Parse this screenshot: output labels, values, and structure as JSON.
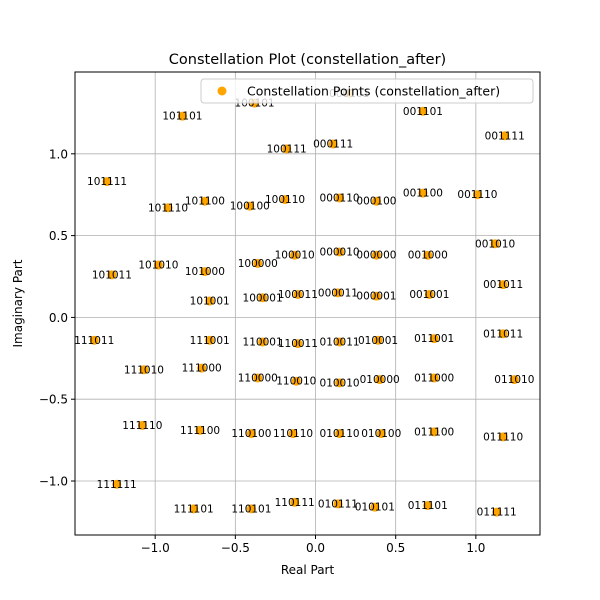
{
  "chart_data": {
    "type": "scatter",
    "title": "Constellation Plot (constellation_after)",
    "xlabel": "Real Part",
    "ylabel": "Imaginary Part",
    "xlim": [
      -1.5,
      1.4
    ],
    "ylim": [
      -1.33,
      1.5
    ],
    "xticks": [
      -1.0,
      -0.5,
      0.0,
      0.5,
      1.0
    ],
    "yticks": [
      -1.0,
      -0.5,
      0.0,
      0.5,
      1.0
    ],
    "xtick_labels": [
      "−1.0",
      "−0.5",
      "0.0",
      "0.5",
      "1.0"
    ],
    "ytick_labels": [
      "−1.0",
      "−0.5",
      "0.0",
      "0.5",
      "1.0"
    ],
    "grid": true,
    "legend_position": "top-right",
    "series": [
      {
        "name": "Constellation Points (constellation_after)",
        "color": "#FFA500",
        "points": [
          {
            "x": -0.38,
            "y": 1.31,
            "label": "100101"
          },
          {
            "x": 0.21,
            "y": 1.37,
            "label": "000101"
          },
          {
            "x": -0.83,
            "y": 1.23,
            "label": "101101"
          },
          {
            "x": 0.67,
            "y": 1.26,
            "label": "001101"
          },
          {
            "x": 0.11,
            "y": 1.06,
            "label": "000111"
          },
          {
            "x": -0.18,
            "y": 1.03,
            "label": "100111"
          },
          {
            "x": 1.18,
            "y": 1.11,
            "label": "001111"
          },
          {
            "x": -1.3,
            "y": 0.83,
            "label": "101111"
          },
          {
            "x": 0.67,
            "y": 0.76,
            "label": "001100"
          },
          {
            "x": 1.01,
            "y": 0.75,
            "label": "001110"
          },
          {
            "x": 0.15,
            "y": 0.73,
            "label": "000110"
          },
          {
            "x": -0.19,
            "y": 0.72,
            "label": "100110"
          },
          {
            "x": -0.69,
            "y": 0.71,
            "label": "101100"
          },
          {
            "x": 0.38,
            "y": 0.71,
            "label": "000100"
          },
          {
            "x": -0.92,
            "y": 0.67,
            "label": "101110"
          },
          {
            "x": -0.41,
            "y": 0.68,
            "label": "100100"
          },
          {
            "x": 1.12,
            "y": 0.45,
            "label": "001010"
          },
          {
            "x": 0.15,
            "y": 0.4,
            "label": "000010"
          },
          {
            "x": -0.13,
            "y": 0.38,
            "label": "100010"
          },
          {
            "x": 0.38,
            "y": 0.38,
            "label": "000000"
          },
          {
            "x": 0.7,
            "y": 0.38,
            "label": "001000"
          },
          {
            "x": -0.36,
            "y": 0.33,
            "label": "100000"
          },
          {
            "x": -0.98,
            "y": 0.32,
            "label": "101010"
          },
          {
            "x": -0.69,
            "y": 0.28,
            "label": "101000"
          },
          {
            "x": -1.27,
            "y": 0.26,
            "label": "101011"
          },
          {
            "x": 1.17,
            "y": 0.2,
            "label": "001011"
          },
          {
            "x": 0.14,
            "y": 0.15,
            "label": "000011"
          },
          {
            "x": -0.11,
            "y": 0.14,
            "label": "100011"
          },
          {
            "x": 0.38,
            "y": 0.13,
            "label": "000001"
          },
          {
            "x": 0.71,
            "y": 0.14,
            "label": "001001"
          },
          {
            "x": -0.33,
            "y": 0.12,
            "label": "100001"
          },
          {
            "x": -0.66,
            "y": 0.1,
            "label": "101001"
          },
          {
            "x": 1.17,
            "y": -0.1,
            "label": "011011"
          },
          {
            "x": -1.38,
            "y": -0.14,
            "label": "111011"
          },
          {
            "x": 0.74,
            "y": -0.13,
            "label": "011001"
          },
          {
            "x": -0.66,
            "y": -0.14,
            "label": "111001"
          },
          {
            "x": -0.33,
            "y": -0.15,
            "label": "110001"
          },
          {
            "x": 0.39,
            "y": -0.14,
            "label": "010001"
          },
          {
            "x": 0.15,
            "y": -0.15,
            "label": "010011"
          },
          {
            "x": -0.11,
            "y": -0.16,
            "label": "110011"
          },
          {
            "x": -1.07,
            "y": -0.32,
            "label": "111010"
          },
          {
            "x": -0.71,
            "y": -0.31,
            "label": "111000"
          },
          {
            "x": -0.36,
            "y": -0.37,
            "label": "110000"
          },
          {
            "x": 1.24,
            "y": -0.38,
            "label": "011010"
          },
          {
            "x": 0.74,
            "y": -0.37,
            "label": "011000"
          },
          {
            "x": 0.4,
            "y": -0.38,
            "label": "010000"
          },
          {
            "x": -0.12,
            "y": -0.39,
            "label": "110010"
          },
          {
            "x": 0.15,
            "y": -0.4,
            "label": "010010"
          },
          {
            "x": -1.08,
            "y": -0.66,
            "label": "111110"
          },
          {
            "x": -0.72,
            "y": -0.69,
            "label": "111100"
          },
          {
            "x": -0.4,
            "y": -0.71,
            "label": "110100"
          },
          {
            "x": -0.14,
            "y": -0.71,
            "label": "110110"
          },
          {
            "x": 0.15,
            "y": -0.71,
            "label": "010110"
          },
          {
            "x": 0.41,
            "y": -0.71,
            "label": "010100"
          },
          {
            "x": 0.74,
            "y": -0.7,
            "label": "011100"
          },
          {
            "x": 1.17,
            "y": -0.73,
            "label": "011110"
          },
          {
            "x": -1.24,
            "y": -1.02,
            "label": "111111"
          },
          {
            "x": -0.13,
            "y": -1.13,
            "label": "110111"
          },
          {
            "x": 0.14,
            "y": -1.14,
            "label": "010111"
          },
          {
            "x": 0.7,
            "y": -1.15,
            "label": "011101"
          },
          {
            "x": -0.76,
            "y": -1.17,
            "label": "111101"
          },
          {
            "x": -0.4,
            "y": -1.17,
            "label": "110101"
          },
          {
            "x": 0.37,
            "y": -1.16,
            "label": "010101"
          },
          {
            "x": 1.13,
            "y": -1.19,
            "label": "011111"
          }
        ]
      }
    ]
  }
}
